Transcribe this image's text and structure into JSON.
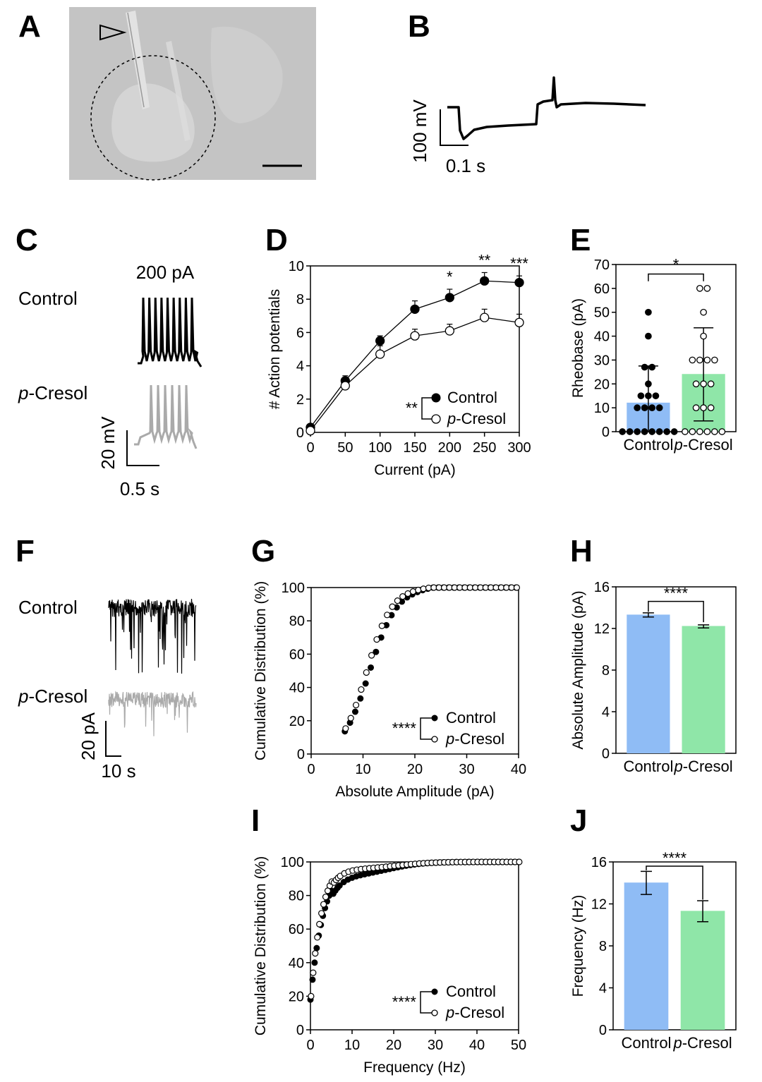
{
  "panels": {
    "A": "A",
    "B": "B",
    "C": "C",
    "D": "D",
    "E": "E",
    "F": "F",
    "G": "G",
    "H": "H",
    "I": "I",
    "J": "J"
  },
  "panel_b": {
    "scale_v": "100 mV",
    "scale_t": "0.1 s"
  },
  "panel_c": {
    "stimulus": "200 pA",
    "control": "Control",
    "pcresol_italic": "p",
    "pcresol_rest": "-Cresol",
    "scale_v": "20 mV",
    "scale_t": "0.5 s"
  },
  "panel_f": {
    "control": "Control",
    "pcresol_italic": "p",
    "pcresol_rest": "-Cresol",
    "scale_i": "20 pA",
    "scale_t": "10 s"
  },
  "colors": {
    "control_bar": "#8fbcf5",
    "pcresol_bar": "#8fe6a8",
    "trace_pcresol": "#aaaaaa"
  },
  "chart_data": [
    {
      "id": "D",
      "type": "line",
      "xlabel": "Current (pA)",
      "ylabel": "# Action potentials",
      "x": [
        0,
        50,
        100,
        150,
        200,
        250,
        300
      ],
      "xlim": [
        0,
        300
      ],
      "ylim": [
        0,
        10
      ],
      "xticks": [
        "0",
        "50",
        "100",
        "150",
        "200",
        "250",
        "300"
      ],
      "yticks": [
        "0",
        "2",
        "4",
        "6",
        "8",
        "10"
      ],
      "series": [
        {
          "name": "Control",
          "values": [
            0.3,
            3.1,
            5.5,
            7.4,
            8.1,
            9.1,
            9.0
          ],
          "err": [
            0.1,
            0.3,
            0.3,
            0.5,
            0.5,
            0.5,
            0.4
          ]
        },
        {
          "name": "p-Cresol",
          "values": [
            0.1,
            2.8,
            4.7,
            5.8,
            6.1,
            6.9,
            6.6
          ],
          "err": [
            0.1,
            0.3,
            0.5,
            0.4,
            0.4,
            0.5,
            0.5
          ]
        }
      ],
      "significance": {
        "200": "*",
        "250": "**",
        "300": "***"
      },
      "overall_sig": "**",
      "legend": {
        "control": "Control",
        "pcresol_italic": "p",
        "pcresol_rest": "-Cresol"
      }
    },
    {
      "id": "E",
      "type": "bar",
      "ylabel": "Rheobase (pA)",
      "ylim": [
        0,
        70
      ],
      "yticks": [
        "0",
        "10",
        "20",
        "30",
        "40",
        "50",
        "60",
        "70"
      ],
      "categories": [
        "Control",
        "p-Cresol"
      ],
      "cat_control": "Control",
      "cat_pcresol_italic": "p",
      "cat_pcresol_rest": "-Cresol",
      "values": [
        12,
        24
      ],
      "sd": [
        [
          0,
          27.5
        ],
        [
          4.5,
          43.5
        ]
      ],
      "points_control": [
        0,
        0,
        0,
        0,
        0,
        0,
        0,
        0,
        10,
        10,
        10,
        10,
        15,
        15,
        15,
        20,
        27,
        27,
        40,
        50
      ],
      "points_pcresol": [
        0,
        0,
        0,
        0,
        0,
        0,
        10,
        10,
        10,
        20,
        20,
        20,
        30,
        30,
        30,
        30,
        40,
        50,
        60,
        60
      ],
      "sig": "*"
    },
    {
      "id": "G",
      "type": "scatter",
      "xlabel": "Absolute Amplitude (pA)",
      "ylabel": "Cumulative Distribution (%)",
      "xlim": [
        0,
        40
      ],
      "ylim": [
        0,
        100
      ],
      "xticks": [
        "0",
        "10",
        "20",
        "30",
        "40"
      ],
      "yticks": [
        "0",
        "20",
        "40",
        "60",
        "80",
        "100"
      ],
      "sig": "****",
      "legend": {
        "control": "Control",
        "pcresol_italic": "p",
        "pcresol_rest": "-Cresol"
      }
    },
    {
      "id": "H",
      "type": "bar",
      "ylabel": "Absolute Amplitude (pA)",
      "ylim": [
        0,
        16
      ],
      "yticks": [
        "0",
        "4",
        "8",
        "12",
        "16"
      ],
      "categories": [
        "Control",
        "p-Cresol"
      ],
      "cat_control": "Control",
      "cat_pcresol_italic": "p",
      "cat_pcresol_rest": "-Cresol",
      "values": [
        13.3,
        12.2
      ],
      "err": [
        0.2,
        0.15
      ],
      "sig": "****"
    },
    {
      "id": "I",
      "type": "scatter",
      "xlabel": "Frequency (Hz)",
      "ylabel": "Cumulative Distribution (%)",
      "xlim": [
        0,
        50
      ],
      "ylim": [
        0,
        100
      ],
      "xticks": [
        "0",
        "10",
        "20",
        "30",
        "40",
        "50"
      ],
      "yticks": [
        "0",
        "20",
        "40",
        "60",
        "80",
        "100"
      ],
      "sig": "****",
      "legend": {
        "control": "Control",
        "pcresol_italic": "p",
        "pcresol_rest": "-Cresol"
      }
    },
    {
      "id": "J",
      "type": "bar",
      "ylabel": "Frequency (Hz)",
      "ylim": [
        0,
        16
      ],
      "yticks": [
        "0",
        "4",
        "8",
        "12",
        "16"
      ],
      "categories": [
        "Control",
        "p-Cresol"
      ],
      "cat_control": "Control",
      "cat_pcresol_italic": "p",
      "cat_pcresol_rest": "-Cresol",
      "values": [
        14.0,
        11.3
      ],
      "err": [
        1.1,
        1.0
      ],
      "sig": "****"
    }
  ]
}
